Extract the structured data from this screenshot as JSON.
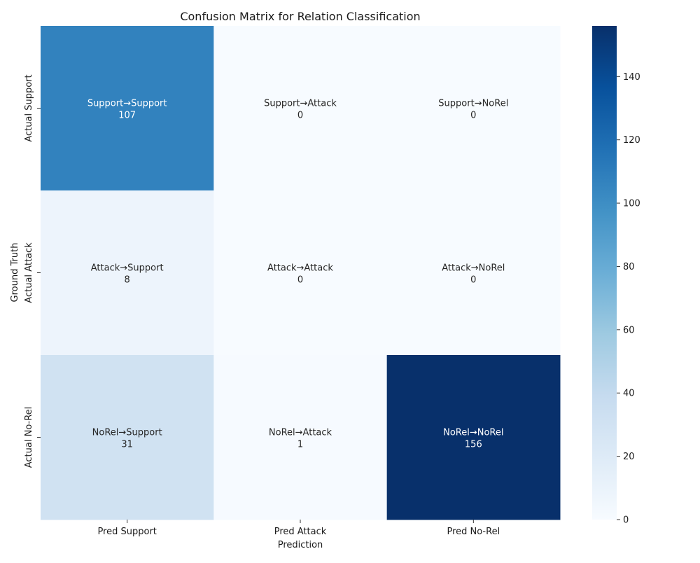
{
  "chart_data": {
    "type": "heatmap",
    "title": "Confusion Matrix for Relation Classification",
    "xlabel": "Prediction",
    "ylabel": "Ground Truth",
    "x_categories": [
      "Pred Support",
      "Pred Attack",
      "Pred No-Rel"
    ],
    "y_categories": [
      "Actual Support",
      "Actual Attack",
      "Actual No-Rel"
    ],
    "cell_labels": [
      [
        "Support→Support",
        "Support→Attack",
        "Support→NoRel"
      ],
      [
        "Attack→Support",
        "Attack→Attack",
        "Attack→NoRel"
      ],
      [
        "NoRel→Support",
        "NoRel→Attack",
        "NoRel→NoRel"
      ]
    ],
    "values": [
      [
        107,
        0,
        0
      ],
      [
        8,
        0,
        0
      ],
      [
        31,
        1,
        156
      ]
    ],
    "colorscale": "Blues",
    "vmin": 0,
    "vmax": 156,
    "colorbar_ticks": [
      0,
      20,
      40,
      60,
      80,
      100,
      120,
      140
    ]
  }
}
